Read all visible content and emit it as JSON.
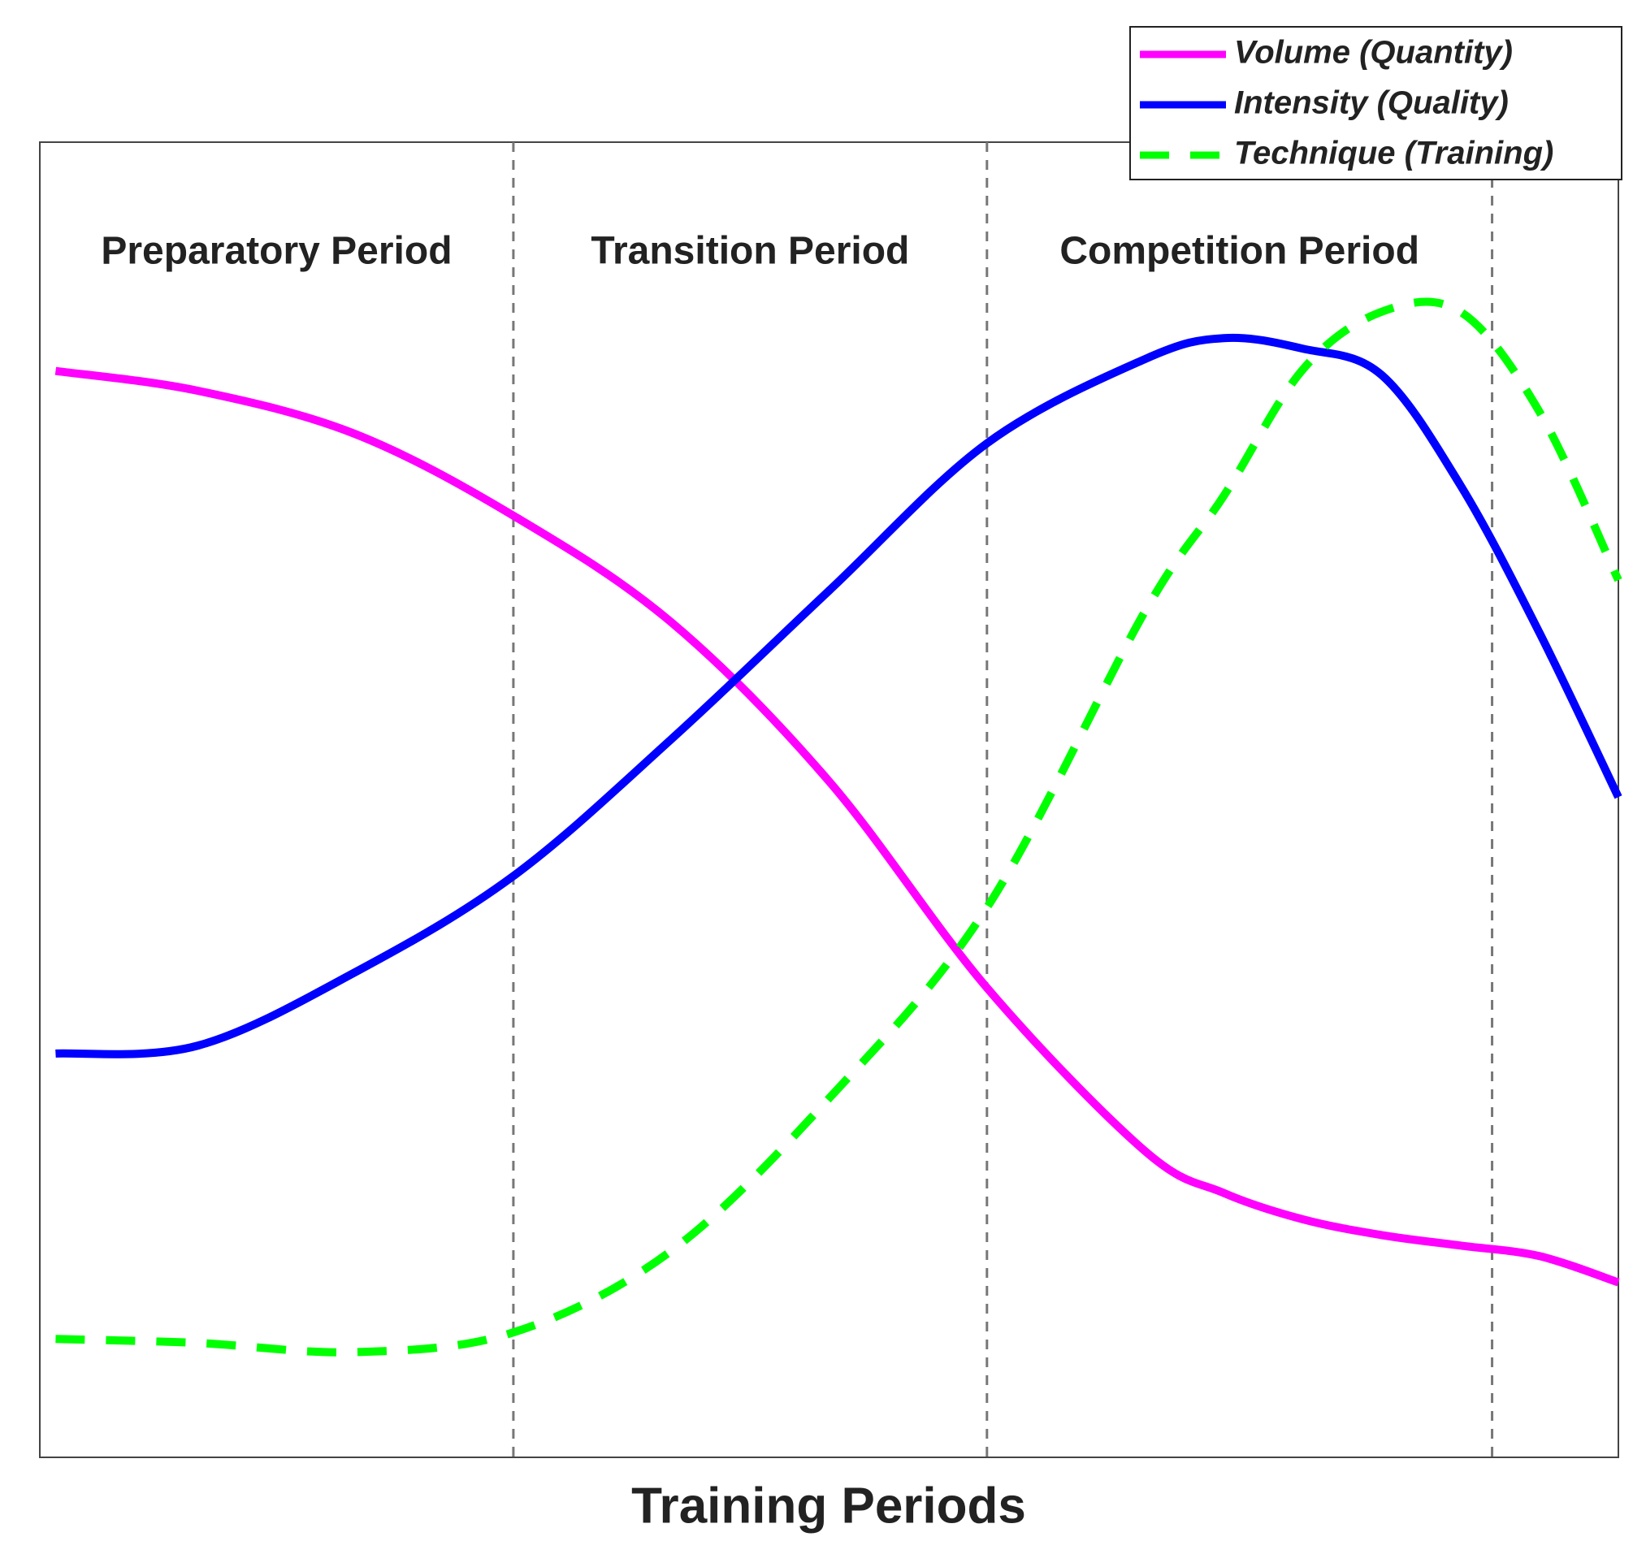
{
  "chart_data": {
    "type": "line",
    "xlabel": "Training Periods",
    "annotations": [
      "Preparatory Period",
      "Transition Period",
      "Competition Period"
    ],
    "x": [
      1,
      10,
      20,
      30,
      40,
      50,
      60,
      70,
      75,
      80,
      85,
      90,
      95,
      100
    ],
    "series": [
      {
        "name": "Volume (Quantity)",
        "color": "#ff00ff",
        "linestyle": "solid",
        "values": [
          82.6,
          81.1,
          77.8,
          71.6,
          63.5,
          51.4,
          35.7,
          23.3,
          20.1,
          18.1,
          16.9,
          16.1,
          15.3,
          13.3
        ]
      },
      {
        "name": "Intensity (Quality)",
        "color": "#0000ff",
        "linestyle": "solid",
        "values": [
          30.7,
          31.3,
          36.9,
          44.2,
          54.6,
          65.9,
          77.1,
          83.5,
          85.1,
          84.3,
          82.3,
          73.9,
          62.7,
          50.2
        ]
      },
      {
        "name": "Technique (Training)",
        "color": "#00ff00",
        "linestyle": "dashed",
        "values": [
          9.0,
          8.7,
          8.0,
          9.5,
          15.7,
          27.3,
          41.8,
          64.3,
          73.1,
          82.7,
          87.1,
          87.1,
          79.5,
          66.7
        ]
      }
    ],
    "vlines": [
      30,
      60,
      92
    ],
    "xlim": [
      0,
      100
    ],
    "ylim": [
      0,
      100
    ],
    "legend": "upper-right"
  }
}
